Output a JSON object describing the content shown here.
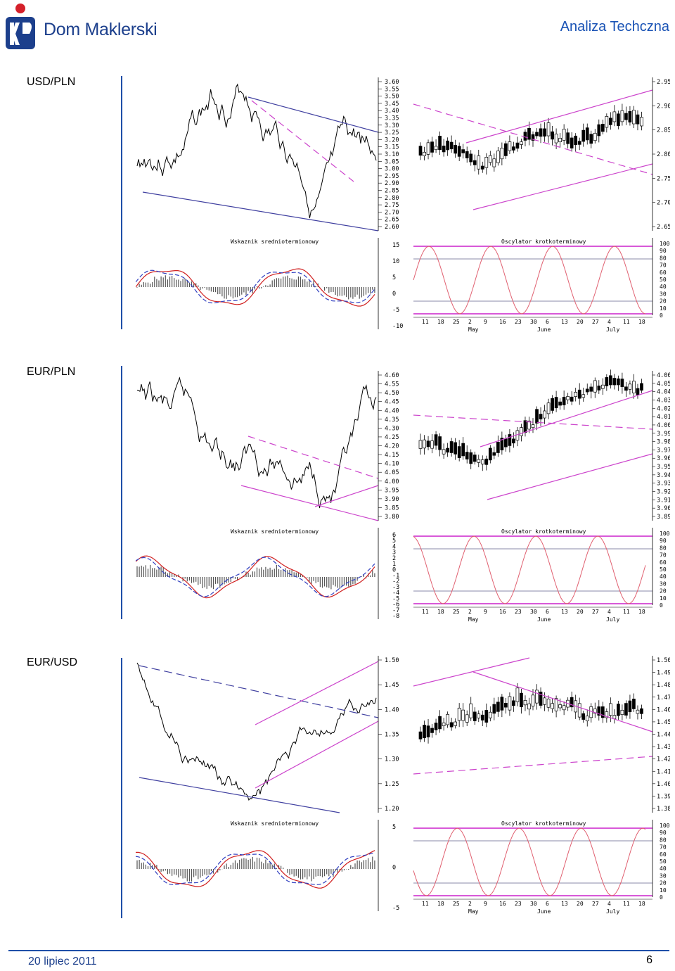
{
  "header": {
    "brand": "Dom Maklerski",
    "title": "Analiza Techczna"
  },
  "colors": {
    "brand_blue": "#1c3f8c",
    "channel_blue": "#4040a0",
    "channel_pink": "#cc44cc",
    "osc_line": "#e06070",
    "macd_red": "#d02020",
    "macd_blue": "#3040c0"
  },
  "sections": [
    {
      "pair": "USD/PLN",
      "long_axis": [
        "3.60",
        "3.55",
        "3.50",
        "3.45",
        "3.40",
        "3.35",
        "3.30",
        "3.25",
        "3.20",
        "3.15",
        "3.10",
        "3.05",
        "3.00",
        "2.95",
        "2.90",
        "2.85",
        "2.80",
        "2.75",
        "2.70",
        "2.65",
        "2.60"
      ],
      "short_axis": [
        "2.95",
        "2.90",
        "2.85",
        "2.80",
        "2.75",
        "2.70",
        "2.65"
      ],
      "macd_title": "Wskaznik sredniotermionowy",
      "macd_axis": [
        "15",
        "10",
        "5",
        "0",
        "-5",
        "-10"
      ],
      "osc_title": "Oscylator krotkoterminowy"
    },
    {
      "pair": "EUR/PLN",
      "long_axis": [
        "4.60",
        "4.55",
        "4.50",
        "4.45",
        "4.40",
        "4.35",
        "4.30",
        "4.25",
        "4.20",
        "4.15",
        "4.10",
        "4.05",
        "4.00",
        "3.95",
        "3.90",
        "3.85",
        "3.80"
      ],
      "short_axis": [
        "4.06",
        "4.05",
        "4.04",
        "4.03",
        "4.02",
        "4.01",
        "4.00",
        "3.99",
        "3.98",
        "3.97",
        "3.96",
        "3.95",
        "3.94",
        "3.93",
        "3.92",
        "3.91",
        "3.90",
        "3.89"
      ],
      "macd_title": "Wskaznik sredniotermionowy",
      "macd_axis": [
        "6",
        "5",
        "4",
        "3",
        "2",
        "1",
        "0",
        "-1",
        "-2",
        "-3",
        "-4",
        "-5",
        "-6",
        "-7",
        "-8"
      ],
      "osc_title": "Oscylator krotkoterminowy"
    },
    {
      "pair": "EUR/USD",
      "long_axis": [
        "1.50",
        "1.45",
        "1.40",
        "1.35",
        "1.30",
        "1.25",
        "1.20"
      ],
      "short_axis": [
        "1.50",
        "1.49",
        "1.48",
        "1.47",
        "1.46",
        "1.45",
        "1.44",
        "1.43",
        "1.42",
        "1.41",
        "1.40",
        "1.39",
        "1.38"
      ],
      "macd_title": "Wskaznik sredniotermionowy",
      "macd_axis": [
        "5",
        "0",
        "-5"
      ],
      "osc_title": "Oscylator krotkoterminowy"
    }
  ],
  "osc_axis": [
    "100",
    "90",
    "80",
    "70",
    "60",
    "50",
    "40",
    "30",
    "20",
    "10",
    "0"
  ],
  "date_ticks": [
    "11",
    "18",
    "25",
    "2",
    "9",
    "16",
    "23",
    "30",
    "6",
    "13",
    "20",
    "27",
    "4",
    "11",
    "18"
  ],
  "months": [
    "May",
    "June",
    "July"
  ],
  "footer": {
    "date": "20 lipiec 2011",
    "page": "6"
  }
}
